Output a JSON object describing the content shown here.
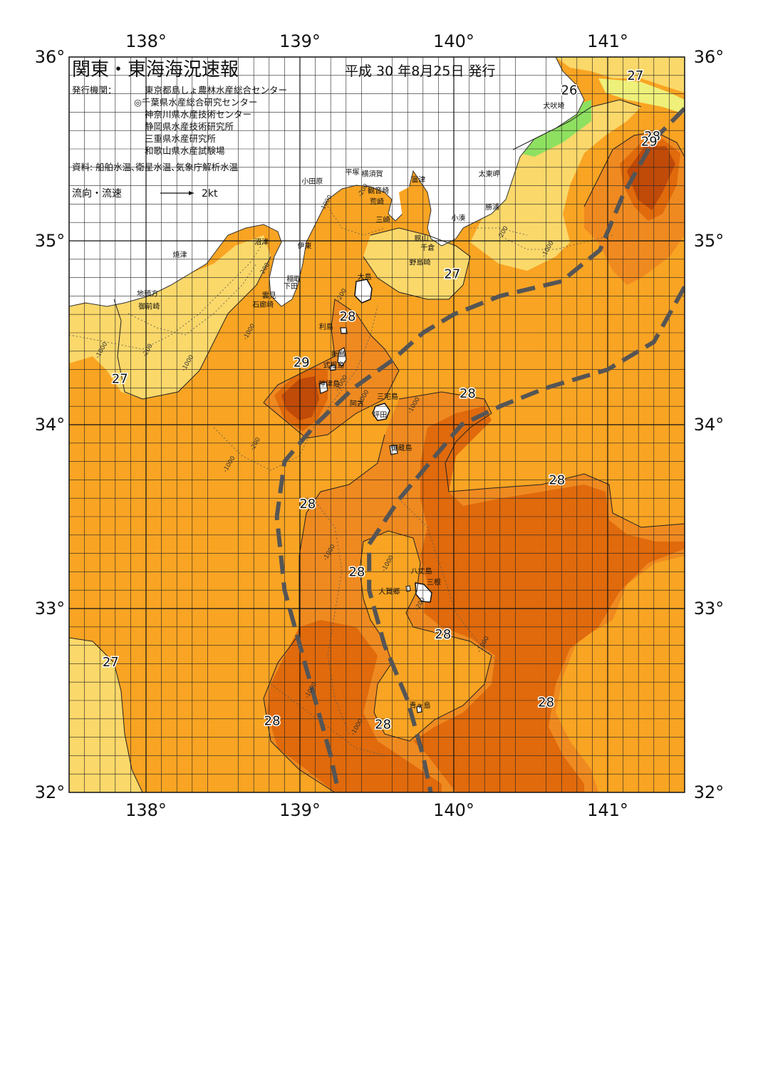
{
  "header": {
    "title": "関東・東海海況速報",
    "date": "平成 30 年8月25日 発行",
    "publisher_label": "発行機関：",
    "publishers": [
      "東京都島しょ農林水産総合センター",
      "◎千葉県水産総合研究センター",
      "神奈川県水産技術センター",
      "静岡県水産技術研究所",
      "三重県水産研究所",
      "和歌山県水産試験場"
    ],
    "sources": "資料: 船舶水温､衛星水温､気象庁解析水温",
    "current_legend_label": "流向・流速",
    "current_legend_value": "2kt"
  },
  "axes": {
    "lon_labels": [
      "138°",
      "139°",
      "140°",
      "141°"
    ],
    "lat_labels": [
      "36°",
      "35°",
      "34°",
      "33°",
      "32°"
    ],
    "lon_range": [
      137.5,
      141.5
    ],
    "lat_range": [
      32,
      36
    ]
  },
  "colors": {
    "t26": "#8ee060",
    "t26_5": "#eef07a",
    "t27": "#fbd86a",
    "t27_5": "#f9a423",
    "t28": "#ef8a20",
    "t28_5": "#e06a0c",
    "t29": "#c04a08",
    "kuroshio": "#555555"
  },
  "temperature_labels": [
    {
      "value": "27",
      "lon": 141.18,
      "lat": 35.9
    },
    {
      "value": "26",
      "lon": 140.75,
      "lat": 35.82
    },
    {
      "value": "28",
      "lon": 141.29,
      "lat": 35.57
    },
    {
      "value": "29",
      "lon": 141.27,
      "lat": 35.54
    },
    {
      "value": "27",
      "lon": 139.99,
      "lat": 34.82
    },
    {
      "value": "28",
      "lon": 139.31,
      "lat": 34.59
    },
    {
      "value": "29",
      "lon": 139.01,
      "lat": 34.34
    },
    {
      "value": "27",
      "lon": 137.83,
      "lat": 34.25
    },
    {
      "value": "28",
      "lon": 140.09,
      "lat": 34.17
    },
    {
      "value": "28",
      "lon": 140.67,
      "lat": 33.7
    },
    {
      "value": "28",
      "lon": 139.05,
      "lat": 33.57
    },
    {
      "value": "28",
      "lon": 139.37,
      "lat": 33.2
    },
    {
      "value": "28",
      "lon": 139.93,
      "lat": 32.86
    },
    {
      "value": "27",
      "lon": 137.77,
      "lat": 32.71
    },
    {
      "value": "28",
      "lon": 140.6,
      "lat": 32.49
    },
    {
      "value": "28",
      "lon": 138.82,
      "lat": 32.39
    },
    {
      "value": "28",
      "lon": 139.54,
      "lat": 32.37
    }
  ],
  "depth_labels": [
    {
      "value": "-200",
      "lon": 139.42,
      "lat": 35.27
    },
    {
      "value": "-1000",
      "lon": 139.18,
      "lat": 35.2
    },
    {
      "value": "-200",
      "lon": 140.33,
      "lat": 35.04
    },
    {
      "value": "-1000",
      "lon": 140.62,
      "lat": 34.95
    },
    {
      "value": "-200",
      "lon": 138.78,
      "lat": 34.84
    },
    {
      "value": "-200",
      "lon": 139.28,
      "lat": 34.7
    },
    {
      "value": "-1000",
      "lon": 138.68,
      "lat": 34.5
    },
    {
      "value": "-1000",
      "lon": 137.72,
      "lat": 34.4
    },
    {
      "value": "-200",
      "lon": 138.02,
      "lat": 34.4
    },
    {
      "value": "-1000",
      "lon": 138.28,
      "lat": 34.33
    },
    {
      "value": "-1000",
      "lon": 139.28,
      "lat": 34.22
    },
    {
      "value": "-1000",
      "lon": 139.42,
      "lat": 34.14
    },
    {
      "value": "-1000",
      "lon": 139.75,
      "lat": 34.1
    },
    {
      "value": "-200",
      "lon": 138.72,
      "lat": 33.89
    },
    {
      "value": "-1000",
      "lon": 138.55,
      "lat": 33.78
    },
    {
      "value": "-1000",
      "lon": 139.2,
      "lat": 33.3
    },
    {
      "value": "-1000",
      "lon": 139.58,
      "lat": 33.24
    },
    {
      "value": "-200",
      "lon": 139.79,
      "lat": 33.02
    },
    {
      "value": "-1000",
      "lon": 140.2,
      "lat": 32.8
    },
    {
      "value": "-1000",
      "lon": 139.08,
      "lat": 32.55
    },
    {
      "value": "-1000",
      "lon": 139.38,
      "lat": 32.35
    }
  ],
  "places": [
    {
      "name": "犬吠埼",
      "lon": 140.65,
      "lat": 35.72
    },
    {
      "name": "太東岬",
      "lon": 140.23,
      "lat": 35.35
    },
    {
      "name": "勝浦",
      "lon": 140.25,
      "lat": 35.17
    },
    {
      "name": "小湊",
      "lon": 140.03,
      "lat": 35.11
    },
    {
      "name": "富津",
      "lon": 139.77,
      "lat": 35.32
    },
    {
      "name": "横須賀",
      "lon": 139.47,
      "lat": 35.35
    },
    {
      "name": "観音崎",
      "lon": 139.51,
      "lat": 35.26
    },
    {
      "name": "荒崎",
      "lon": 139.5,
      "lat": 35.2
    },
    {
      "name": "三崎",
      "lon": 139.54,
      "lat": 35.1
    },
    {
      "name": "平塚",
      "lon": 139.34,
      "lat": 35.36
    },
    {
      "name": "小田原",
      "lon": 139.08,
      "lat": 35.31
    },
    {
      "name": "館山",
      "lon": 139.79,
      "lat": 35.0
    },
    {
      "name": "千倉",
      "lon": 139.83,
      "lat": 34.95
    },
    {
      "name": "野島崎",
      "lon": 139.78,
      "lat": 34.87
    },
    {
      "name": "沼津",
      "lon": 138.75,
      "lat": 34.98
    },
    {
      "name": "伊東",
      "lon": 139.03,
      "lat": 34.96
    },
    {
      "name": "焼津",
      "lon": 138.22,
      "lat": 34.91
    },
    {
      "name": "大島",
      "lon": 139.42,
      "lat": 34.79
    },
    {
      "name": "稲取",
      "lon": 138.96,
      "lat": 34.78
    },
    {
      "name": "下田",
      "lon": 138.94,
      "lat": 34.74
    },
    {
      "name": "雲見",
      "lon": 138.8,
      "lat": 34.69
    },
    {
      "name": "石廊崎",
      "lon": 138.76,
      "lat": 34.64
    },
    {
      "name": "地頭方",
      "lon": 138.01,
      "lat": 34.7
    },
    {
      "name": "御前崎",
      "lon": 138.02,
      "lat": 34.63
    },
    {
      "name": "利島",
      "lon": 139.17,
      "lat": 34.52
    },
    {
      "name": "新島",
      "lon": 139.25,
      "lat": 34.37
    },
    {
      "name": "式根島",
      "lon": 139.22,
      "lat": 34.31
    },
    {
      "name": "神津島",
      "lon": 139.19,
      "lat": 34.21
    },
    {
      "name": "三宅島",
      "lon": 139.57,
      "lat": 34.14
    },
    {
      "name": "阿古",
      "lon": 139.37,
      "lat": 34.1
    },
    {
      "name": "坪田",
      "lon": 139.52,
      "lat": 34.04
    },
    {
      "name": "御蔵島",
      "lon": 139.66,
      "lat": 33.86
    },
    {
      "name": "八丈島",
      "lon": 139.79,
      "lat": 33.19
    },
    {
      "name": "三根",
      "lon": 139.87,
      "lat": 33.13
    },
    {
      "name": "大賀郷",
      "lon": 139.58,
      "lat": 33.08
    },
    {
      "name": "青ヶ島",
      "lon": 139.78,
      "lat": 32.46
    }
  ],
  "kuroshio_paths": [
    [
      [
        141.5,
        35.72
      ],
      [
        141.3,
        35.55
      ],
      [
        141.1,
        35.25
      ],
      [
        140.95,
        34.95
      ],
      [
        140.7,
        34.78
      ],
      [
        140.3,
        34.7
      ],
      [
        140.0,
        34.6
      ],
      [
        139.8,
        34.5
      ],
      [
        139.6,
        34.35
      ],
      [
        139.35,
        34.2
      ],
      [
        139.1,
        34.0
      ],
      [
        138.9,
        33.8
      ],
      [
        138.85,
        33.5
      ],
      [
        138.9,
        33.1
      ],
      [
        139.0,
        32.8
      ],
      [
        139.1,
        32.5
      ],
      [
        139.2,
        32.2
      ],
      [
        139.25,
        32.0
      ]
    ],
    [
      [
        141.5,
        34.75
      ],
      [
        141.3,
        34.45
      ],
      [
        141.0,
        34.3
      ],
      [
        140.6,
        34.2
      ],
      [
        140.3,
        34.1
      ],
      [
        140.05,
        34.0
      ],
      [
        139.85,
        33.8
      ],
      [
        139.65,
        33.6
      ],
      [
        139.45,
        33.35
      ],
      [
        139.45,
        33.1
      ],
      [
        139.55,
        32.8
      ],
      [
        139.7,
        32.5
      ],
      [
        139.8,
        32.2
      ],
      [
        139.85,
        32.0
      ]
    ]
  ]
}
